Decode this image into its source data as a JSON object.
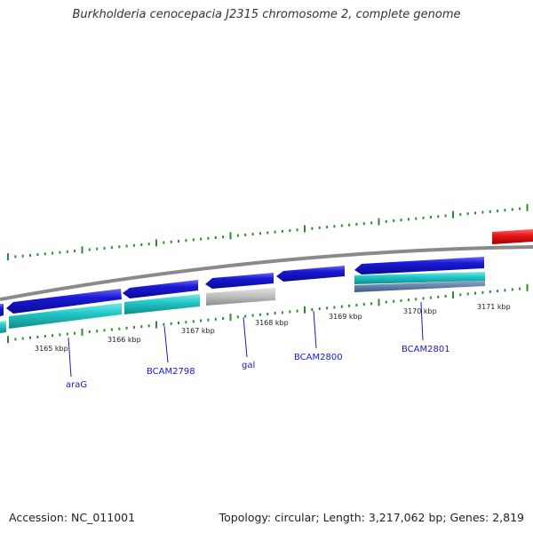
{
  "title": "Burkholderia cenocepacia J2315 chromosome 2, complete genome",
  "footer": {
    "accession": "Accession: NC_011001",
    "summary": "Topology: circular; Length: 3,217,062 bp; Genes: 2,819"
  },
  "colors": {
    "cds": "#1a1ad8",
    "gene": "#22c8c8",
    "pseudo": "#b8b8b8",
    "rrna": "#e81818",
    "backbone": "#8a8a8a",
    "ticks": "#2e8b2e",
    "label": "#1a1acc"
  },
  "scale_labels": [
    "3165 kbp",
    "3166 kbp",
    "3167 kbp",
    "3168 kbp",
    "3169 kbp",
    "3170 kbp",
    "3171 kbp"
  ],
  "gene_labels": [
    "araG",
    "BCAM2798",
    "gal",
    "BCAM2800",
    "BCAM2801"
  ]
}
